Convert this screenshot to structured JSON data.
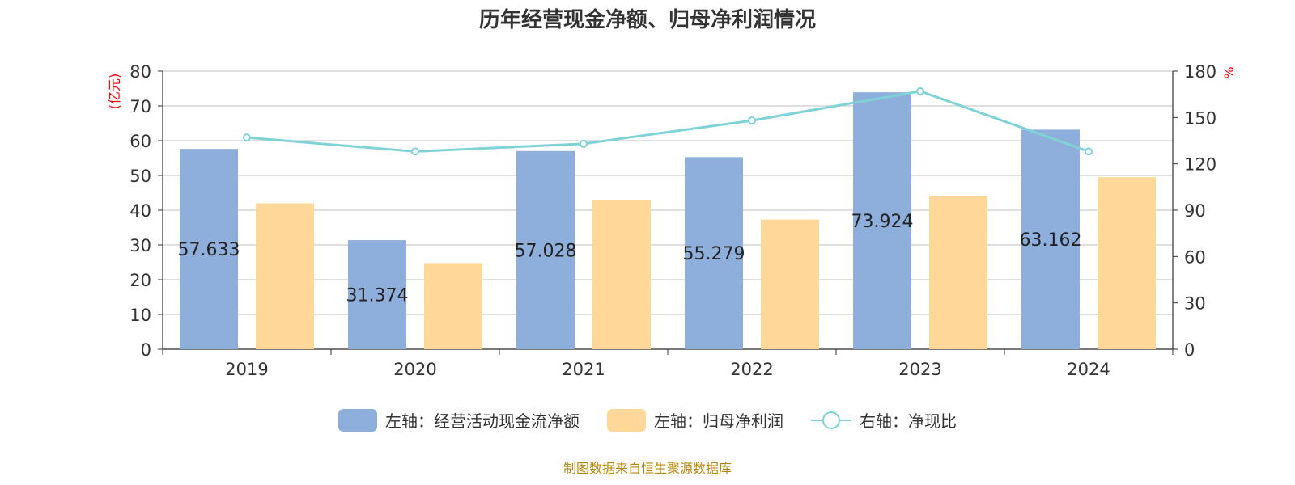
{
  "title": "历年经营现金净额、归母净利润情况",
  "footer": "制图数据来自恒生聚源数据库",
  "colors": {
    "cash": "#8eaedb",
    "profit": "#ffd899",
    "ratio": "#7fd3d6",
    "axis_unit": "#ff0000"
  },
  "chart_data": {
    "type": "bar",
    "categories": [
      "2019",
      "2020",
      "2021",
      "2022",
      "2023",
      "2024"
    ],
    "y_left": {
      "label": "(亿元)",
      "min": 0,
      "max": 80,
      "ticks": [
        0,
        10,
        20,
        30,
        40,
        50,
        60,
        70,
        80
      ]
    },
    "y_right": {
      "label": "%",
      "min": 0,
      "max": 180,
      "ticks": [
        0,
        30,
        60,
        90,
        120,
        150,
        180
      ]
    },
    "grid": true,
    "legend_position": "bottom",
    "series": [
      {
        "name": "左轴：经营活动现金流净额",
        "type": "bar",
        "axis": "left",
        "values": [
          57.633,
          31.374,
          57.028,
          55.279,
          73.924,
          63.162
        ],
        "labels": [
          "57.633",
          "31.374",
          "57.028",
          "55.279",
          "73.924",
          "63.162"
        ]
      },
      {
        "name": "左轴：归母净利润",
        "type": "bar",
        "axis": "left",
        "values": [
          42.0,
          24.8,
          42.8,
          37.3,
          44.2,
          49.5
        ]
      },
      {
        "name": "右轴：净现比",
        "type": "line",
        "axis": "right",
        "values": [
          137,
          128,
          133,
          148,
          167,
          128
        ]
      }
    ]
  }
}
